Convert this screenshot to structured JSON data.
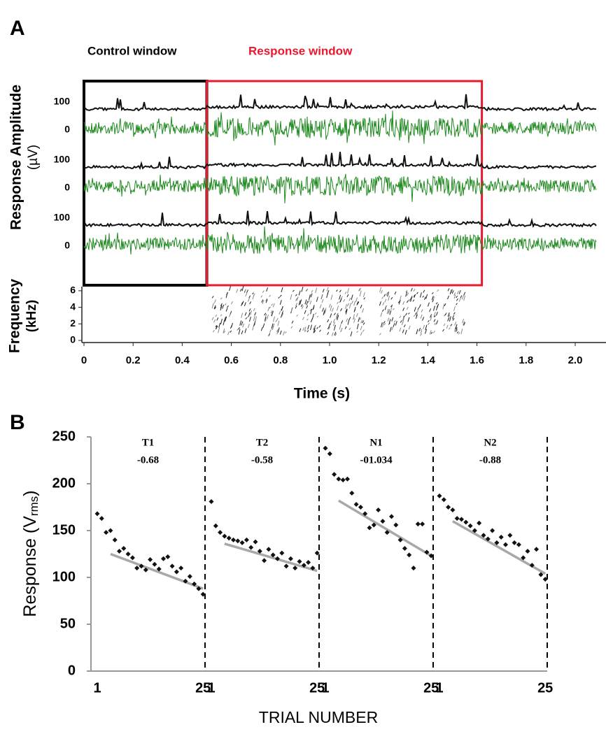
{
  "chart_data": [
    {
      "type": "trace",
      "panel_label": "A",
      "windows": [
        {
          "name": "Control window",
          "color": "#000000",
          "range": [
            0,
            0.5
          ]
        },
        {
          "name": "Response window",
          "color": "#e8192c",
          "range": [
            0.5,
            1.62
          ]
        }
      ],
      "ylabel": [
        "Response Amplitude",
        "(µV)"
      ],
      "trace_yticks": [
        [
          100,
          0
        ],
        [
          100,
          0
        ],
        [
          100,
          0
        ]
      ],
      "trace_colors": [
        "#111111",
        "#1e8a1e"
      ],
      "spec_ylabel": [
        "Frequency",
        "(kHz)"
      ],
      "spec_ylim": [
        0,
        6.5
      ],
      "spec_yticks": [
        0,
        2,
        4,
        6
      ],
      "xlim": [
        0,
        2.12
      ],
      "xticks": [
        {
          "value": 0,
          "label": "0"
        },
        0.2,
        0.4,
        0.6,
        0.8,
        {
          "value": 1,
          "label": "1.0"
        },
        1.2,
        1.4,
        1.6,
        1.8,
        {
          "value": 2,
          "label": "2.0"
        }
      ],
      "xlabel": "Time (s)"
    },
    {
      "type": "scatter",
      "panel_label": "B",
      "ylabel": [
        "Response (V",
        "rms",
        ")"
      ],
      "ylim": [
        0,
        250
      ],
      "yticks": [
        0,
        50,
        100,
        150,
        200,
        250
      ],
      "x": [
        1,
        2,
        3,
        4,
        5,
        6,
        7,
        8,
        9,
        10,
        11,
        12,
        13,
        14,
        15,
        16,
        17,
        18,
        19,
        20,
        21,
        22,
        23,
        24,
        25
      ],
      "xticks": [
        1,
        25
      ],
      "xlabel": "TRIAL NUMBER",
      "color": "#111111",
      "fit_color": "#a8a8a8",
      "series": [
        {
          "name": "T1",
          "annotation": "-0.68",
          "values": [
            168,
            163,
            148,
            150,
            140,
            128,
            131,
            125,
            121,
            110,
            112,
            108,
            119,
            114,
            109,
            120,
            122,
            112,
            106,
            110,
            96,
            101,
            93,
            88,
            82
          ],
          "fit": {
            "x": [
              4,
              25
            ],
            "values": [
              125,
              88
            ]
          }
        },
        {
          "name": "T2",
          "annotation": "-0.58",
          "values": [
            181,
            155,
            148,
            144,
            142,
            140,
            139,
            137,
            140,
            132,
            138,
            128,
            118,
            130,
            124,
            120,
            126,
            112,
            120,
            110,
            117,
            113,
            116,
            110,
            126
          ],
          "fit": {
            "x": [
              4,
              25
            ],
            "values": [
              136,
              107
            ]
          }
        },
        {
          "name": "N1",
          "annotation": "-01.034",
          "values": [
            238,
            232,
            210,
            205,
            204,
            205,
            190,
            178,
            175,
            168,
            153,
            156,
            172,
            160,
            148,
            165,
            156,
            140,
            131,
            124,
            110,
            157,
            157,
            127,
            123
          ],
          "fit": {
            "x": [
              4,
              25
            ],
            "values": [
              182,
              123
            ]
          }
        },
        {
          "name": "N2",
          "annotation": "-0.88",
          "values": [
            187,
            183,
            175,
            172,
            163,
            162,
            159,
            155,
            150,
            158,
            145,
            141,
            150,
            137,
            143,
            135,
            145,
            137,
            135,
            121,
            128,
            113,
            130,
            103,
            98
          ],
          "fit": {
            "x": [
              4,
              25
            ],
            "values": [
              160,
              104
            ]
          }
        }
      ]
    }
  ]
}
